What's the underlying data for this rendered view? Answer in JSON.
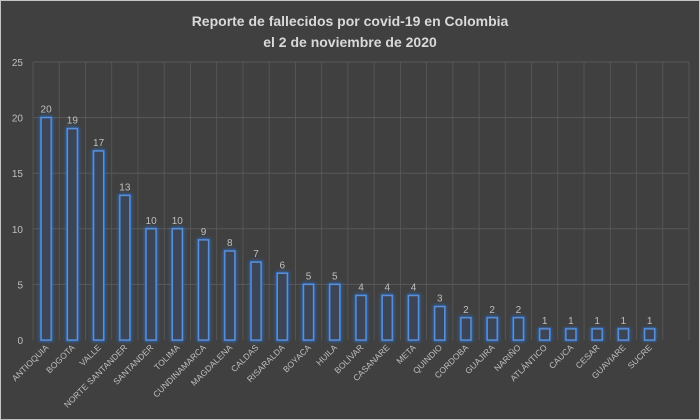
{
  "chart_data": {
    "type": "bar",
    "title": "Reporte de fallecidos por covid-19 en Colombia",
    "subtitle": "el 2 de noviembre de 2020",
    "xlabel": "",
    "ylabel": "",
    "ylim": [
      0,
      25
    ],
    "yticks": [
      0,
      5,
      10,
      15,
      20,
      25
    ],
    "grid": {
      "horizontal": true,
      "vertical": true
    },
    "legend": null,
    "data_labels": true,
    "categories": [
      "ANTIOQUIA",
      "BOGOTA",
      "VALLE",
      "NORTE SANTANDER",
      "SANTANDER",
      "TOLIMA",
      "CUNDINAMARCA",
      "MAGDALENA",
      "CALDAS",
      "RISARALDA",
      "BOYACA",
      "HUILA",
      "BOLÍVAR",
      "CASANARE",
      "META",
      "QUINDIO",
      "CORDOBA",
      "GUAJIRA",
      "NARIÑO",
      "ATLÁNTICO",
      "CAUCA",
      "CESAR",
      "GUAVIARE",
      "SUCRE"
    ],
    "values": [
      20,
      19,
      17,
      13,
      10,
      10,
      9,
      8,
      7,
      6,
      5,
      5,
      4,
      4,
      4,
      3,
      2,
      2,
      2,
      1,
      1,
      1,
      1,
      1
    ],
    "colors": {
      "background": "#404040",
      "bar_outline": "#5b8fd6",
      "bar_fill": "#3b4556",
      "bar_glow": "#2f6fc4",
      "grid": "#595959",
      "text": "#bfbfbf",
      "title": "#d9d9d9"
    }
  }
}
